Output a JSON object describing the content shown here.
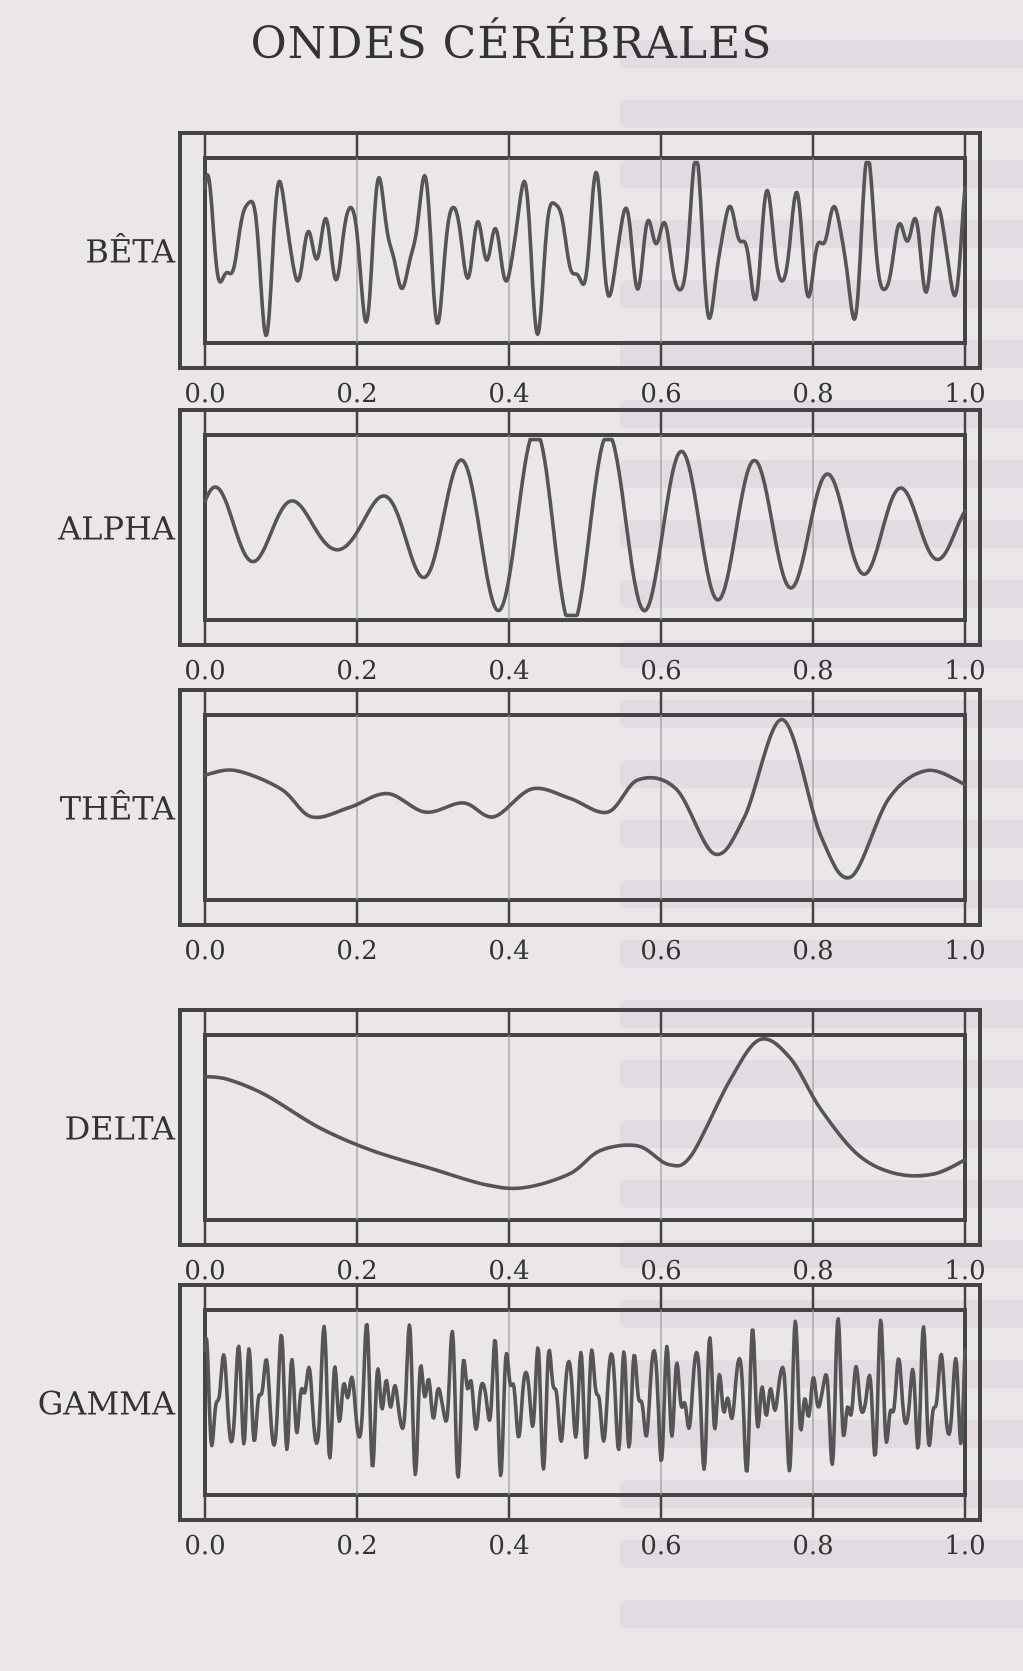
{
  "title": "ONDES CÉRÉBRALES",
  "chart_data": [
    {
      "type": "line",
      "label": "BÊTA",
      "x_ticks": [
        "0.0",
        "0.2",
        "0.4",
        "0.6",
        "0.8",
        "1.0"
      ],
      "xlim": [
        0,
        1
      ],
      "ylim": [
        -1,
        1
      ],
      "grid": true,
      "waveform": {
        "components": [
          [
            22,
            0.42,
            0.3
          ],
          [
            31,
            0.28,
            1.4
          ],
          [
            17,
            0.2,
            2.2
          ],
          [
            45,
            0.12,
            0.6
          ]
        ],
        "baseline": 0.05
      }
    },
    {
      "type": "line",
      "label": "ALPHA",
      "x_ticks": [
        "0.0",
        "0.2",
        "0.4",
        "0.6",
        "0.8",
        "1.0"
      ],
      "xlim": [
        0,
        1
      ],
      "ylim": [
        -1,
        1
      ],
      "grid": true,
      "waveform": {
        "components": [
          [
            10,
            0.55,
            0.0
          ],
          [
            11,
            0.35,
            2.0
          ]
        ],
        "baseline": 0.0
      },
      "envelope": [
        [
          0,
          0.55
        ],
        [
          0.15,
          0.7
        ],
        [
          0.3,
          1.0
        ],
        [
          0.45,
          1.0
        ],
        [
          0.6,
          0.6
        ],
        [
          0.8,
          0.45
        ],
        [
          1.0,
          0.35
        ]
      ]
    },
    {
      "type": "line",
      "label": "THÊTA",
      "x_ticks": [
        "0.0",
        "0.2",
        "0.4",
        "0.6",
        "0.8",
        "1.0"
      ],
      "xlim": [
        0,
        1
      ],
      "ylim": [
        -1,
        1
      ],
      "grid": true,
      "points": [
        [
          0.0,
          0.35
        ],
        [
          0.04,
          0.4
        ],
        [
          0.1,
          0.2
        ],
        [
          0.14,
          -0.1
        ],
        [
          0.19,
          0.0
        ],
        [
          0.24,
          0.15
        ],
        [
          0.29,
          -0.05
        ],
        [
          0.34,
          0.05
        ],
        [
          0.38,
          -0.1
        ],
        [
          0.43,
          0.2
        ],
        [
          0.48,
          0.1
        ],
        [
          0.53,
          -0.05
        ],
        [
          0.57,
          0.3
        ],
        [
          0.62,
          0.2
        ],
        [
          0.67,
          -0.5
        ],
        [
          0.71,
          -0.1
        ],
        [
          0.76,
          0.95
        ],
        [
          0.81,
          -0.3
        ],
        [
          0.85,
          -0.75
        ],
        [
          0.9,
          0.1
        ],
        [
          0.95,
          0.4
        ],
        [
          1.0,
          0.25
        ]
      ]
    },
    {
      "type": "line",
      "label": "DELTA",
      "x_ticks": [
        "0.0",
        "0.2",
        "0.4",
        "0.6",
        "0.8",
        "1.0"
      ],
      "xlim": [
        0,
        1
      ],
      "ylim": [
        -1,
        1
      ],
      "grid": true,
      "points": [
        [
          0.0,
          0.55
        ],
        [
          0.03,
          0.52
        ],
        [
          0.08,
          0.35
        ],
        [
          0.15,
          0.0
        ],
        [
          0.22,
          -0.25
        ],
        [
          0.3,
          -0.45
        ],
        [
          0.37,
          -0.62
        ],
        [
          0.42,
          -0.65
        ],
        [
          0.48,
          -0.5
        ],
        [
          0.52,
          -0.25
        ],
        [
          0.57,
          -0.2
        ],
        [
          0.61,
          -0.4
        ],
        [
          0.64,
          -0.3
        ],
        [
          0.69,
          0.5
        ],
        [
          0.73,
          0.95
        ],
        [
          0.77,
          0.75
        ],
        [
          0.81,
          0.2
        ],
        [
          0.86,
          -0.3
        ],
        [
          0.91,
          -0.5
        ],
        [
          0.96,
          -0.5
        ],
        [
          1.0,
          -0.35
        ]
      ]
    },
    {
      "type": "line",
      "label": "GAMMA",
      "x_ticks": [
        "0.0",
        "0.2",
        "0.4",
        "0.6",
        "0.8",
        "1.0"
      ],
      "xlim": [
        0,
        1
      ],
      "ylim": [
        -1,
        1
      ],
      "grid": true,
      "waveform": {
        "components": [
          [
            53,
            0.32,
            0.2
          ],
          [
            71,
            0.26,
            1.1
          ],
          [
            37,
            0.2,
            2.5
          ],
          [
            89,
            0.14,
            0.8
          ]
        ],
        "baseline": 0.05
      }
    }
  ]
}
